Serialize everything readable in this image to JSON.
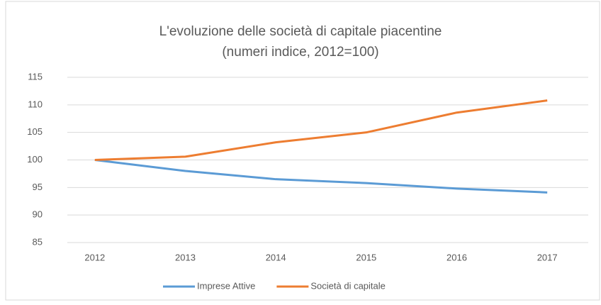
{
  "chart_data": {
    "type": "line",
    "title": "L'evoluzione delle società di capitale piacentine",
    "subtitle": "(numeri indice, 2012=100)",
    "categories": [
      "2012",
      "2013",
      "2014",
      "2015",
      "2016",
      "2017"
    ],
    "series": [
      {
        "name": "Imprese Attive",
        "color": "#5b9bd5",
        "values": [
          100,
          98,
          96.5,
          95.8,
          94.8,
          94.1
        ]
      },
      {
        "name": "Società di capitale",
        "color": "#ed7d31",
        "values": [
          100,
          100.6,
          103.2,
          105,
          108.6,
          110.8
        ]
      }
    ],
    "ylim": [
      85,
      115
    ],
    "yticks": [
      85,
      90,
      95,
      100,
      105,
      110,
      115
    ],
    "grid": true,
    "legend": "bottom"
  }
}
